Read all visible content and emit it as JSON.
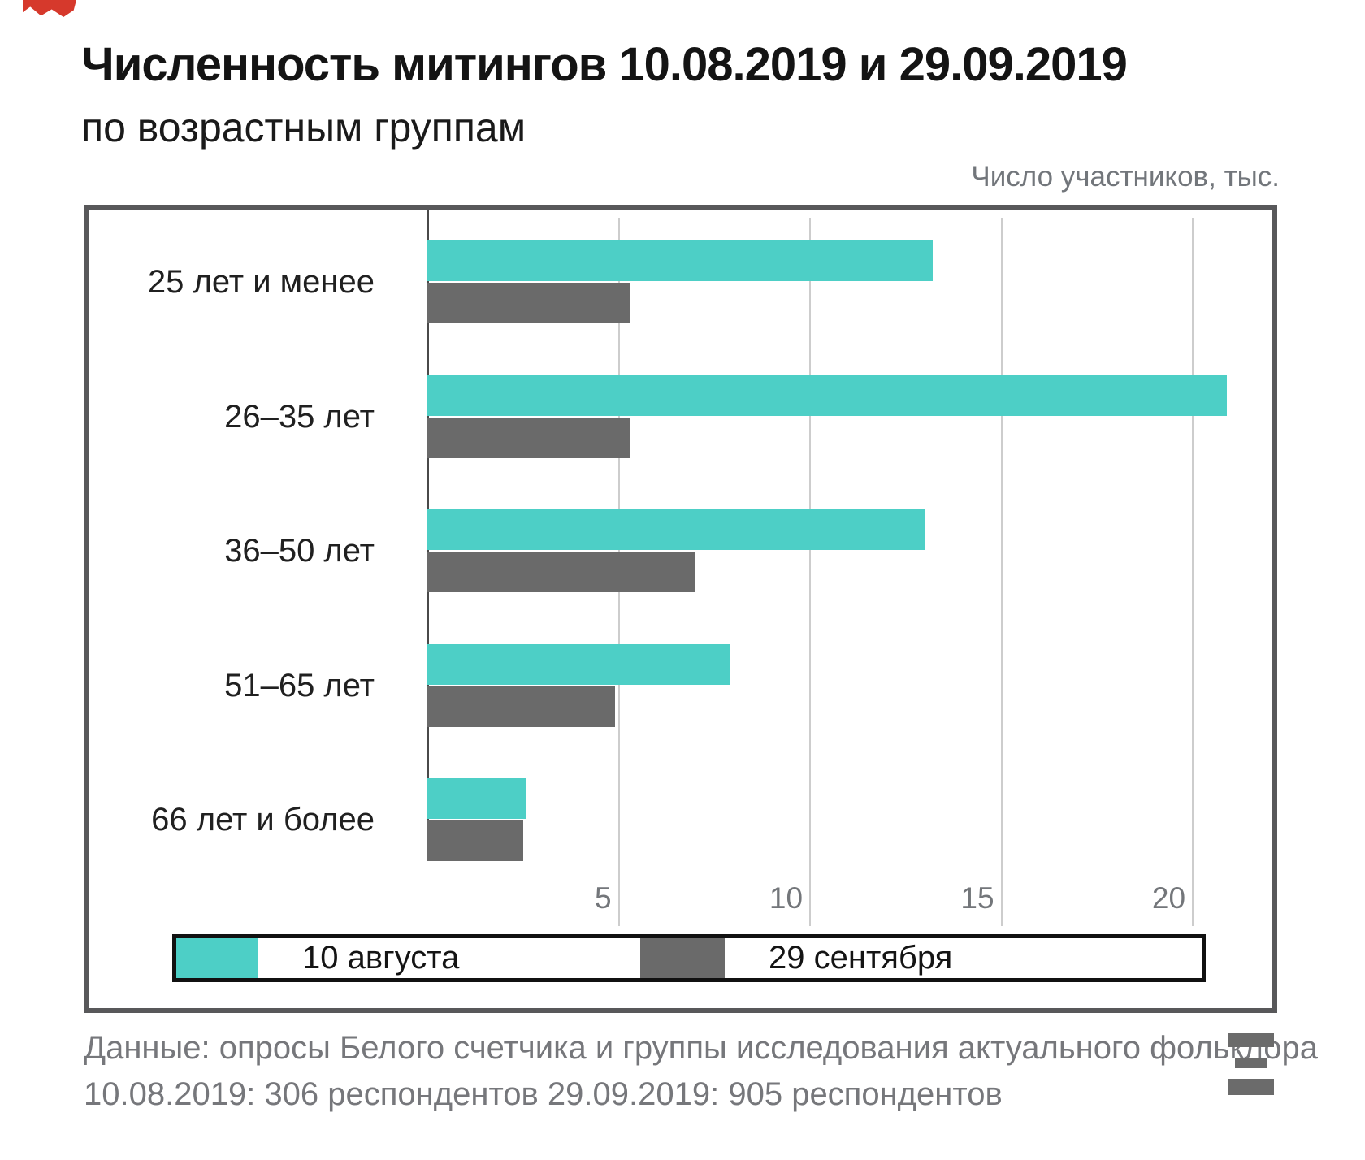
{
  "header": {
    "title": "Численность митингов 10.08.2019 и 29.09.2019",
    "subtitle": "по возрастным группам",
    "units_note": "Число участников, тыс."
  },
  "chart_data": {
    "type": "bar",
    "orientation": "horizontal",
    "title": "Численность митингов 10.08.2019 и 29.09.2019 по возрастным группам",
    "xlabel": "Число участников, тыс.",
    "categories": [
      "25 лет и менее",
      "26–35 лет",
      "36–50 лет",
      "51–65 лет",
      "66 лет и более"
    ],
    "series": [
      {
        "name": "10 августа",
        "color": "#4dcfc6",
        "values": [
          13.2,
          20.9,
          13.0,
          7.9,
          2.6
        ]
      },
      {
        "name": "29 сентября",
        "color": "#6a6a6a",
        "values": [
          5.3,
          5.3,
          7.0,
          4.9,
          2.5
        ]
      }
    ],
    "x_ticks": [
      5,
      10,
      15,
      20
    ],
    "xlim": [
      0,
      22.1
    ],
    "grid": true,
    "legend_position": "bottom"
  },
  "legend": {
    "items": [
      {
        "label": "10 августа",
        "color": "#4dcfc6"
      },
      {
        "label": "29 сентября",
        "color": "#6a6a6a"
      }
    ]
  },
  "footer": {
    "line1": "Данные: опросы Белого счетчика и группы исследования актуального фольклора",
    "line2": "10.08.2019: 306 респондентов 29.09.2019: 905 респондентов"
  },
  "colors": {
    "accent_teal": "#4dcfc6",
    "bar_gray": "#6a6a6a",
    "frame_border": "#58585a",
    "gridline": "#cdcdcd",
    "text_gray": "#73767a",
    "corner_mark_red": "#d6392c"
  }
}
